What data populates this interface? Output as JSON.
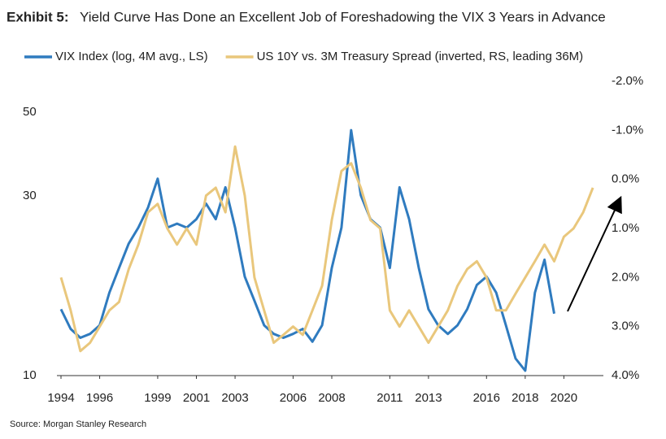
{
  "chart_data": {
    "type": "line",
    "title_label": "Exhibit 5:",
    "title": "Yield Curve Has Done an Excellent Job of Foreshadowing the VIX 3 Years in Advance",
    "source": "Source: Morgan Stanley Research",
    "x": [
      1994,
      1994.5,
      1995,
      1995.5,
      1996,
      1996.5,
      1997,
      1997.5,
      1998,
      1998.5,
      1999,
      1999.5,
      2000,
      2000.5,
      2001,
      2001.5,
      2002,
      2002.5,
      2003,
      2003.5,
      2004,
      2004.5,
      2005,
      2005.5,
      2006,
      2006.5,
      2007,
      2007.5,
      2008,
      2008.5,
      2009,
      2009.5,
      2010,
      2010.5,
      2011,
      2011.5,
      2012,
      2012.5,
      2013,
      2013.5,
      2014,
      2014.5,
      2015,
      2015.5,
      2016,
      2016.5,
      2017,
      2017.5,
      2018,
      2018.5,
      2019,
      2019.5,
      2020,
      2020.5,
      2021,
      2021.5
    ],
    "series": [
      {
        "name": "VIX Index (log, 4M avg., LS)",
        "color": "#2f7bbf",
        "axis": "y",
        "values": [
          15.0,
          13.3,
          12.6,
          12.9,
          13.6,
          16.6,
          19.3,
          22.4,
          24.7,
          27.9,
          33.3,
          24.7,
          25.3,
          24.7,
          26,
          28.6,
          26,
          31.6,
          24.7,
          18.3,
          15.8,
          13.6,
          12.9,
          12.6,
          12.9,
          13.3,
          12.3,
          13.6,
          19.3,
          24.7,
          44.8,
          30.1,
          26,
          24.7,
          19.3,
          31.6,
          26,
          19.3,
          15,
          13.6,
          12.9,
          13.6,
          15,
          17.4,
          18.3,
          16.6,
          13.6,
          11.1,
          10.3,
          16.6,
          20.3,
          14.6,
          null,
          null,
          null,
          null
        ]
      },
      {
        "name": "US 10Y vs. 3M Treasury Spread (inverted, RS, leading 36M)",
        "color": "#e9c77c",
        "axis": "y2",
        "values": [
          2.0,
          2.67,
          3.5,
          3.33,
          3.0,
          2.67,
          2.5,
          1.83,
          1.33,
          0.67,
          0.5,
          1.0,
          1.33,
          1.0,
          1.33,
          0.33,
          0.17,
          0.67,
          -0.67,
          0.33,
          2.0,
          2.67,
          3.33,
          3.17,
          3.0,
          3.17,
          2.67,
          2.17,
          0.83,
          -0.17,
          -0.33,
          0.17,
          0.83,
          1.0,
          2.67,
          3.0,
          2.67,
          3.0,
          3.33,
          3.0,
          2.67,
          2.17,
          1.83,
          1.67,
          2.0,
          2.67,
          2.67,
          2.33,
          2.0,
          1.67,
          1.33,
          1.67,
          1.17,
          1.0,
          0.67,
          0.17
        ]
      }
    ],
    "xlim": [
      1994,
      2022
    ],
    "xticks": [
      1994,
      1996,
      1999,
      2001,
      2003,
      2006,
      2008,
      2011,
      2013,
      2016,
      2018,
      2020
    ],
    "ylim": [
      10,
      50
    ],
    "ylog": true,
    "yticks": [
      10,
      30,
      50
    ],
    "y2lim": [
      -2,
      4
    ],
    "y2_inverted": true,
    "y2ticks": [
      {
        "value": -2,
        "label": "-2.0%"
      },
      {
        "value": -1,
        "label": "-1.0%"
      },
      {
        "value": 0,
        "label": "0.0%"
      },
      {
        "value": 1,
        "label": "1.0%"
      },
      {
        "value": 2,
        "label": "2.0%"
      },
      {
        "value": 3,
        "label": "3.0%"
      },
      {
        "value": 4,
        "label": "4.0%"
      }
    ],
    "grid": false
  }
}
